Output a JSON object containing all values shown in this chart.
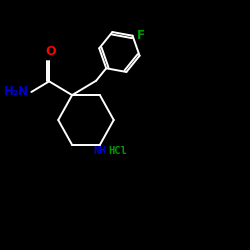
{
  "background_color": "#000000",
  "bond_color": "#ffffff",
  "O_color": "#ff0000",
  "N_color": "#0000cc",
  "F_color": "#009900",
  "NH_color": "#0000cc",
  "HCl_color": "#009900",
  "bond_lw": 1.4,
  "figsize": [
    2.5,
    2.5
  ],
  "dpi": 100,
  "xlim": [
    0,
    10
  ],
  "ylim": [
    0,
    10
  ]
}
